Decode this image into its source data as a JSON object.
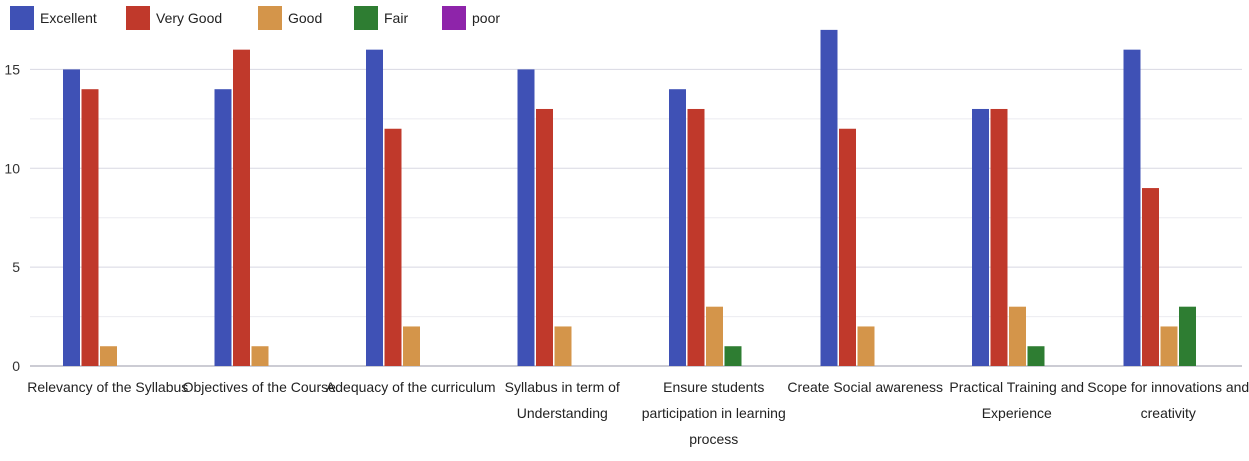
{
  "chart_data": {
    "type": "bar",
    "title": "",
    "xlabel": "",
    "ylabel": "",
    "ylim": [
      0,
      17.5
    ],
    "yticks": [
      0,
      5,
      10,
      15
    ],
    "grid": true,
    "legend_position": "top-left",
    "categories": [
      [
        "Relevancy of the Syllabus"
      ],
      [
        "Objectives of the Course"
      ],
      [
        "Adequacy of the curriculum"
      ],
      [
        "Syllabus in term of",
        "Understanding"
      ],
      [
        "Ensure students",
        "participation in learning",
        "process"
      ],
      [
        "Create Social awareness"
      ],
      [
        "Practical Training and",
        "Experience"
      ],
      [
        "Scope for innovations and",
        "creativity"
      ]
    ],
    "series": [
      {
        "name": "Excellent",
        "color": "#3f51b5",
        "values": [
          15,
          14,
          16,
          15,
          14,
          17,
          13,
          16
        ]
      },
      {
        "name": "Very Good",
        "color": "#c0392b",
        "values": [
          14,
          16,
          12,
          13,
          13,
          12,
          13,
          9
        ]
      },
      {
        "name": "Good",
        "color": "#d4954a",
        "values": [
          1,
          1,
          2,
          2,
          3,
          2,
          3,
          2
        ]
      },
      {
        "name": "Fair",
        "color": "#2e7d32",
        "values": [
          0,
          0,
          0,
          0,
          1,
          0,
          1,
          3
        ]
      },
      {
        "name": "poor",
        "color": "#8e24aa",
        "values": [
          0,
          0,
          0,
          0,
          0,
          0,
          0,
          0
        ]
      }
    ]
  }
}
